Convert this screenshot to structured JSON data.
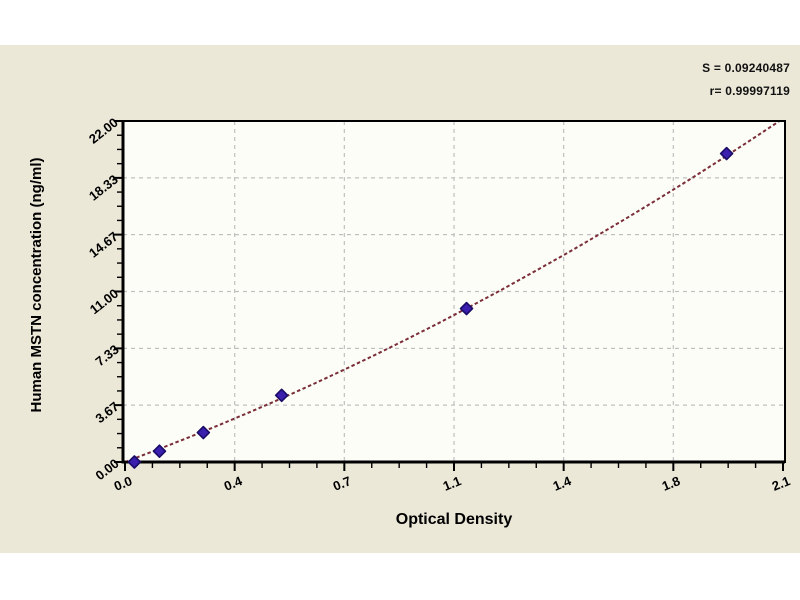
{
  "page": {
    "background": "#ffffff",
    "panel_color": "#ebe8d8"
  },
  "chart_data": {
    "type": "scatter",
    "title": "",
    "xlabel": "Optical Density",
    "ylabel": "Human MSTN concentration (ng/ml)",
    "xlim": [
      0,
      2.1
    ],
    "ylim": [
      0,
      22
    ],
    "x_ticks": {
      "values": [
        0,
        0.35,
        0.7,
        1.05,
        1.4,
        1.75,
        2.1
      ],
      "labels": [
        "0.0",
        "0.4",
        "0.7",
        "1.1",
        "1.4",
        "1.8",
        "2.1"
      ]
    },
    "y_ticks": {
      "values": [
        0,
        3.67,
        7.33,
        11.0,
        14.67,
        18.33,
        22.0
      ],
      "labels": [
        "0.00",
        "3.67",
        "7.33",
        "11.00",
        "14.67",
        "18.33",
        "22.00"
      ]
    },
    "minor_ticks_per_major": 4,
    "grid": "dashed lines at major ticks",
    "legend_position": "none",
    "points": [
      [
        0.03,
        0.0
      ],
      [
        0.11,
        0.7
      ],
      [
        0.25,
        1.9
      ],
      [
        0.5,
        4.3
      ],
      [
        1.09,
        9.9
      ],
      [
        1.92,
        19.9
      ]
    ],
    "curve_fit": {
      "description": "smooth fitted standard curve through data points",
      "samples": [
        [
          0.0,
          0.0
        ],
        [
          0.1,
          0.77
        ],
        [
          0.2,
          1.56
        ],
        [
          0.3,
          2.38
        ],
        [
          0.4,
          3.23
        ],
        [
          0.5,
          4.11
        ],
        [
          0.6,
          5.02
        ],
        [
          0.7,
          5.96
        ],
        [
          0.8,
          6.93
        ],
        [
          0.9,
          7.93
        ],
        [
          1.0,
          8.95
        ],
        [
          1.1,
          10.01
        ],
        [
          1.2,
          11.09
        ],
        [
          1.3,
          12.21
        ],
        [
          1.4,
          13.35
        ],
        [
          1.5,
          14.52
        ],
        [
          1.6,
          15.72
        ],
        [
          1.7,
          16.95
        ],
        [
          1.8,
          18.2
        ],
        [
          1.9,
          19.49
        ],
        [
          2.0,
          20.81
        ],
        [
          2.1,
          22.15
        ]
      ]
    },
    "annotations": [
      "S = 0.09240487",
      "r= 0.99997119"
    ],
    "colors": {
      "curve": "#7a2e38",
      "marker_fill": "#3a1fae",
      "marker_border": "#1a0b66",
      "grid": "#c0c0c0",
      "axis": "#000000",
      "plot_background": "#fdfdf8",
      "panel_background": "#ebe8d8"
    }
  }
}
